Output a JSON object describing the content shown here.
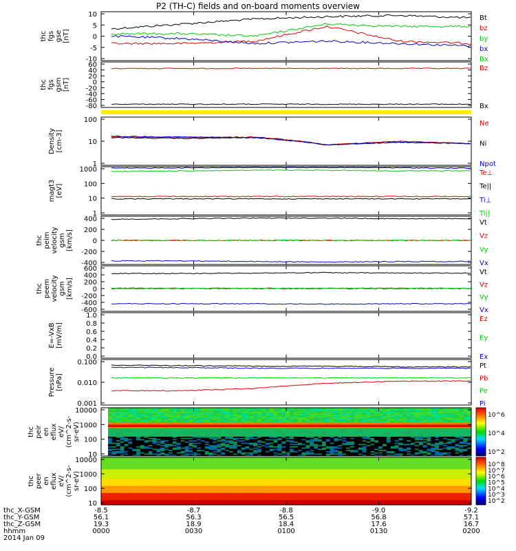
{
  "title": "P2 (TH-C) fields and on-board moments overview",
  "date_label": "2014 Jan 09",
  "colors": {
    "black": "#000000",
    "red": "#dd0000",
    "green": "#00cc00",
    "blue": "#0000cc",
    "yellow": "#ffee00"
  },
  "chart_data": [
    {
      "type": "line",
      "panel": "fgs_gse",
      "ylabel": [
        "thc",
        "fgs",
        "gse",
        "[nT]"
      ],
      "yticks": [
        "10",
        "5",
        "0",
        "-5",
        "-10"
      ],
      "ylim": [
        -10,
        10
      ],
      "series": [
        {
          "name": "Bt",
          "color": "black",
          "level": [
            3,
            5,
            7,
            8,
            8.5,
            7.5
          ]
        },
        {
          "name": "bz",
          "color": "red",
          "level": [
            -3,
            -3,
            -2,
            4,
            -2,
            -3
          ]
        },
        {
          "name": "by",
          "color": "green",
          "level": [
            1,
            1,
            0,
            5,
            4,
            4
          ]
        },
        {
          "name": "bx",
          "color": "blue",
          "level": [
            0,
            -1,
            -3,
            -2,
            -3,
            -4
          ]
        },
        {
          "name": "Bx",
          "color": "green",
          "level": null
        }
      ]
    },
    {
      "type": "line",
      "panel": "fgs_gsm",
      "ylabel": [
        "thc",
        "fgs",
        "gsm",
        "[nT]"
      ],
      "yticks": [
        "60",
        "40",
        "20",
        "0",
        "-20",
        "-40",
        "-60",
        "-80"
      ],
      "ylim": [
        -80,
        60
      ],
      "series": [
        {
          "name": "Bz",
          "color": "red",
          "level": [
            40,
            40,
            40,
            40,
            40,
            40
          ]
        },
        {
          "name": "Bx",
          "color": "black",
          "level": [
            -70,
            -70,
            -70,
            -70,
            -70,
            -70
          ]
        }
      ]
    },
    {
      "type": "line",
      "panel": "density",
      "ylabel": [
        "Density",
        "[cm-3]"
      ],
      "yticks": [
        "100",
        "10",
        "1"
      ],
      "scale": "log",
      "ylim": [
        1,
        100
      ],
      "series": [
        {
          "name": "Ne",
          "color": "red",
          "level": [
            15,
            14,
            15,
            7,
            10,
            8
          ]
        },
        {
          "name": "Ni",
          "color": "black",
          "level": [
            14,
            13,
            14,
            7,
            9,
            8
          ]
        },
        {
          "name": "Npot",
          "color": "blue",
          "level": [
            16,
            15,
            14,
            7,
            9,
            8
          ]
        }
      ]
    },
    {
      "type": "line",
      "panel": "temperature",
      "ylabel": [
        "magt3",
        "[eV]"
      ],
      "yticks": [
        "1000",
        "100",
        "10",
        "1"
      ],
      "scale": "log",
      "ylim": [
        1,
        1000
      ],
      "series": [
        {
          "name": "Te⊥",
          "color": "red",
          "level": [
            14,
            14,
            14,
            14,
            14,
            14
          ]
        },
        {
          "name": "Te||",
          "color": "black",
          "level": [
            10,
            10,
            10,
            10,
            10,
            10
          ]
        },
        {
          "name": "Ti⊥",
          "color": "blue",
          "level": [
            800,
            850,
            900,
            900,
            850,
            800
          ]
        },
        {
          "name": "Ti||",
          "color": "green",
          "level": [
            500,
            550,
            600,
            600,
            550,
            550
          ]
        }
      ]
    },
    {
      "type": "line",
      "panel": "peim_velocity",
      "ylabel": [
        "thc",
        "peim",
        "velocity",
        "gsm",
        "[km/s]"
      ],
      "yticks": [
        "400",
        "200",
        "0",
        "-200",
        "-400"
      ],
      "ylim": [
        -400,
        400
      ],
      "series": [
        {
          "name": "Vt",
          "color": "black",
          "level": [
            350,
            360,
            370,
            370,
            360,
            360
          ]
        },
        {
          "name": "Vz",
          "color": "red",
          "level": [
            0,
            0,
            0,
            0,
            0,
            0
          ]
        },
        {
          "name": "Vy",
          "color": "green",
          "level": [
            0,
            0,
            0,
            0,
            0,
            0
          ]
        },
        {
          "name": "Vx",
          "color": "blue",
          "level": [
            -340,
            -340,
            -350,
            -360,
            -350,
            -350
          ]
        }
      ]
    },
    {
      "type": "line",
      "panel": "peem_velocity",
      "ylabel": [
        "thc",
        "peem",
        "velocity",
        "gsm",
        "[km/s]"
      ],
      "yticks": [
        "600",
        "400",
        "200",
        "0",
        "-200",
        "-400",
        "-600"
      ],
      "ylim": [
        -600,
        600
      ],
      "series": [
        {
          "name": "Vt",
          "color": "black",
          "level": [
            400,
            400,
            410,
            420,
            410,
            410
          ]
        },
        {
          "name": "Vz",
          "color": "red",
          "level": [
            0,
            0,
            0,
            0,
            0,
            0
          ]
        },
        {
          "name": "Vy",
          "color": "green",
          "level": [
            10,
            10,
            10,
            10,
            10,
            10
          ]
        },
        {
          "name": "Vx",
          "color": "blue",
          "level": [
            -400,
            -400,
            -400,
            -410,
            -400,
            -400
          ]
        }
      ]
    },
    {
      "type": "line",
      "panel": "efield",
      "ylabel": [
        "E=-VxB",
        "[mV/m]"
      ],
      "yticks": [
        "1.0",
        "0.8",
        "0.6",
        "0.4",
        "0.2",
        "0.0"
      ],
      "ylim": [
        0,
        1
      ],
      "series": [
        {
          "name": "Ez",
          "color": "red",
          "level": null
        },
        {
          "name": "Ey",
          "color": "green",
          "level": null
        },
        {
          "name": "Ex",
          "color": "blue",
          "level": null
        }
      ]
    },
    {
      "type": "line",
      "panel": "pressure",
      "ylabel": [
        "Pressure",
        "[nPa]"
      ],
      "yticks": [
        "0.100",
        "0.010",
        "0.001"
      ],
      "scale": "log",
      "ylim": [
        0.001,
        0.3
      ],
      "series": [
        {
          "name": "Pt",
          "color": "black",
          "level": [
            0.15,
            0.14,
            0.13,
            0.13,
            0.12,
            0.12
          ]
        },
        {
          "name": "Pb",
          "color": "red",
          "level": [
            0.006,
            0.006,
            0.008,
            0.015,
            0.02,
            0.02
          ]
        },
        {
          "name": "Pe",
          "color": "green",
          "level": [
            0.03,
            0.03,
            0.03,
            0.03,
            0.03,
            0.03
          ]
        },
        {
          "name": "Pi",
          "color": "blue",
          "level": [
            0.11,
            0.11,
            0.1,
            0.1,
            0.1,
            0.1
          ]
        }
      ]
    },
    {
      "type": "heatmap",
      "panel": "peir_spectrogram",
      "ylabel": [
        "thc",
        "peir",
        "en",
        "eflux",
        "eV/",
        "(cm^2-s-",
        "sr-eV)"
      ],
      "yticks": [
        "10000",
        "1000",
        "100",
        "10"
      ],
      "colorbar_ticks": [
        "10^6",
        "10^4",
        "10^2"
      ]
    },
    {
      "type": "heatmap",
      "panel": "peer_spectrogram",
      "ylabel": [
        "thc",
        "peer",
        "en",
        "eflux",
        "eV/",
        "(cm^2-s-",
        "sr-eV)"
      ],
      "yticks": [
        "10000",
        "1000",
        "100",
        "10"
      ],
      "colorbar_ticks": [
        "10^8",
        "10^7",
        "10^6",
        "10^5",
        "10^4",
        "10^3",
        "10^2"
      ]
    }
  ],
  "x_axis": {
    "rows": [
      {
        "label": "thc_X-GSM",
        "values": [
          "-8.5",
          "-8.7",
          "-8.8",
          "-9.0",
          "-9.2"
        ]
      },
      {
        "label": "thc_Y-GSM",
        "values": [
          "56.1",
          "56.3",
          "56.5",
          "56.8",
          "57.1"
        ]
      },
      {
        "label": "thc_Z-GSM",
        "values": [
          "19.3",
          "18.9",
          "18.4",
          "17.6",
          "16.7"
        ]
      },
      {
        "label": "hhmm",
        "values": [
          "0000",
          "0030",
          "0100",
          "0130",
          "0200"
        ]
      }
    ]
  }
}
